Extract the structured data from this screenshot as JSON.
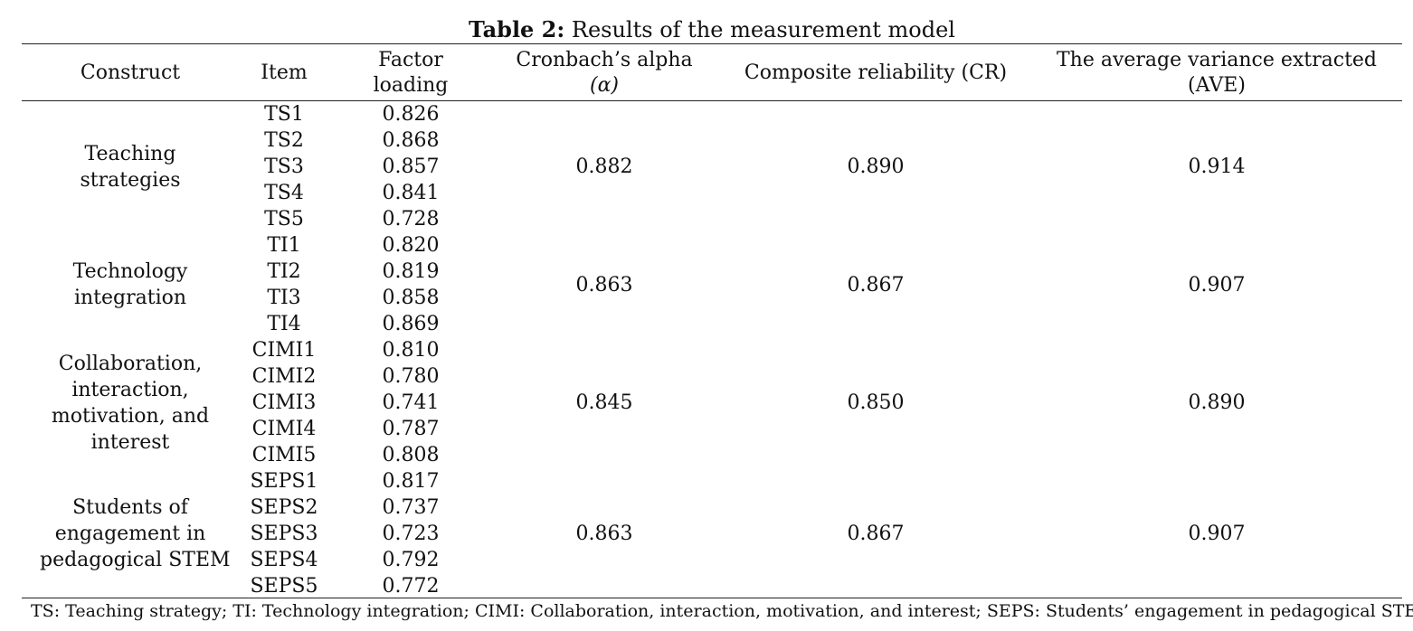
{
  "caption": {
    "label": "Table 2:",
    "text": " Results of the measurement model"
  },
  "headers": {
    "construct": "Construct",
    "item": "Item",
    "factor_loading": [
      "Factor",
      "loading"
    ],
    "cronbach": [
      "Cronbach’s alpha",
      "(α)"
    ],
    "cr": "Composite reliability (CR)",
    "ave": [
      "The average variance extracted",
      "(AVE)"
    ]
  },
  "groups": [
    {
      "construct_lines": [
        "Teaching",
        "strategies"
      ],
      "items": [
        {
          "item": "TS1",
          "loading": "0.826"
        },
        {
          "item": "TS2",
          "loading": "0.868"
        },
        {
          "item": "TS3",
          "loading": "0.857"
        },
        {
          "item": "TS4",
          "loading": "0.841"
        },
        {
          "item": "TS5",
          "loading": "0.728"
        }
      ],
      "alpha": "0.882",
      "cr": "0.890",
      "ave": "0.914"
    },
    {
      "construct_lines": [
        "Technology",
        "integration"
      ],
      "items": [
        {
          "item": "TI1",
          "loading": "0.820"
        },
        {
          "item": "TI2",
          "loading": "0.819"
        },
        {
          "item": "TI3",
          "loading": "0.858"
        },
        {
          "item": "TI4",
          "loading": "0.869"
        }
      ],
      "alpha": "0.863",
      "cr": "0.867",
      "ave": "0.907"
    },
    {
      "construct_lines": [
        "Collaboration,",
        "interaction,",
        "motivation, and",
        "interest"
      ],
      "items": [
        {
          "item": "CIMI1",
          "loading": "0.810"
        },
        {
          "item": "CIMI2",
          "loading": "0.780"
        },
        {
          "item": "CIMI3",
          "loading": "0.741"
        },
        {
          "item": "CIMI4",
          "loading": "0.787"
        },
        {
          "item": "CIMI5",
          "loading": "0.808"
        }
      ],
      "alpha": "0.845",
      "cr": "0.850",
      "ave": "0.890"
    },
    {
      "construct_lines": [
        "Students of",
        "engagement in",
        "pedagogical STEM"
      ],
      "items": [
        {
          "item": "SEPS1",
          "loading": "0.817"
        },
        {
          "item": "SEPS2",
          "loading": "0.737"
        },
        {
          "item": "SEPS3",
          "loading": "0.723"
        },
        {
          "item": "SEPS4",
          "loading": "0.792"
        },
        {
          "item": "SEPS5",
          "loading": "0.772"
        }
      ],
      "alpha": "0.863",
      "cr": "0.867",
      "ave": "0.907"
    }
  ],
  "footnote": "TS: Teaching strategy; TI: Technology integration; CIMI: Collaboration, interaction, motivation, and interest; SEPS: Students’ engagement in pedagogical STEM"
}
